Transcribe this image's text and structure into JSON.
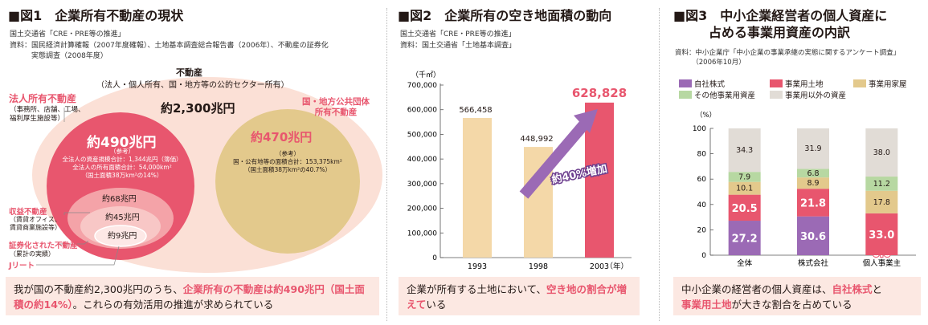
{
  "colors": {
    "pink": "#e8566e",
    "pinkLight": "#f4a3a8",
    "bg1": "#fbe0d6",
    "tan": "#e3c98c",
    "purple": "#9b6ab5",
    "green": "#b7d8a2",
    "gray": "#e1dcd6",
    "bar": "#f4d8a8",
    "captionBg": "#fce8e2"
  },
  "panel1": {
    "title": "■図1　企業所有不動産の現状",
    "source": [
      "国土交通省「CRE・PRE等の推進」",
      "資料：国民経済計算確報（2007年度確報）、土地基本調査総合報告書（2006年）、不動産の証券化",
      "　　　実態調査（2008年度）"
    ],
    "top_label": "不動産",
    "top_sub": "（法人・個人所有、国・地方等の公的セクター所有）",
    "total": "約2,300兆円",
    "corp_label": "法人所有不動産",
    "corp_sub": [
      "（事務所、店舗、工場、",
      "福利厚生施設等）"
    ],
    "corp_value": "約490兆円",
    "corp_note": [
      "（参考）",
      "全法人の資産規模合計：1,344兆円（簿価）",
      "全法人の所有面積合計：54,000km²",
      "（国土面積38万km²の14%）"
    ],
    "public_label": [
      "国・地方公共団体",
      "所有不動産"
    ],
    "public_value": "約470兆円",
    "public_note": [
      "（参考）",
      "国・公有地等の面積合計：153,375km²",
      "（国土面積38万km²の40.7%）"
    ],
    "income_label": "収益不動産",
    "income_sub": [
      "（賃貸オフィス、",
      "賃貸商業施設等）"
    ],
    "income_value": "約68兆円",
    "sec_label": "証券化された不動産",
    "sec_sub": "（累計の実績）",
    "sec_value": "約45兆円",
    "jreit_label": "Jリート",
    "jreit_value": "約9兆円",
    "caption_pre": "我が国の不動産約2,300兆円のうち、",
    "caption_hl": "企業所有の不動産は約490兆円（国土面積の約14%）",
    "caption_post": "。これらの有効活用の推進が求められている"
  },
  "panel2": {
    "title": "■図2　企業所有の空き地面積の動向",
    "source": [
      "国土交通省「CRE・PRE等の推進」",
      "資料：国土交通省「土地基本調査」"
    ],
    "annotation": "約40%増加",
    "caption_pre": "企業が所有する土地において、",
    "caption_hl": "空き地の割合が増えて",
    "caption_post": "いる"
  },
  "panel3": {
    "title": "■図3　中小企業経営者の個人資産に",
    "title_line2": "占める事業用資産の内訳",
    "source": [
      "資料：中小企業庁「中小企業の事業承継の実態に関するアンケート調査」",
      "　　　（2006年10月）"
    ],
    "caption_pre": "中小企業の経営者の個人資産は、",
    "caption_hl1": "自社株式",
    "caption_mid": "と",
    "caption_hl2": "事業用土地",
    "caption_post": "が大きな割合を占めている"
  },
  "chart_data": [
    {
      "type": "bar",
      "unit_label": "（千㎡）",
      "categories": [
        "1993",
        "1998",
        "2003"
      ],
      "x_unit": "（年）",
      "values": [
        566458,
        448992,
        628828
      ],
      "value_labels": [
        "566,458",
        "448,992",
        "628,828"
      ],
      "ylim": [
        0,
        700000
      ],
      "yticks": [
        "0",
        "100,000",
        "200,000",
        "300,000",
        "400,000",
        "500,000",
        "600,000",
        "700,000"
      ],
      "highlight_index": 2
    },
    {
      "type": "bar",
      "stacked": true,
      "unit_label": "（%）",
      "categories": [
        "全体",
        "株式会社",
        "個人事業主"
      ],
      "ylim": [
        0,
        100
      ],
      "yticks": [
        "0",
        "20",
        "40",
        "60",
        "80",
        "100"
      ],
      "series": [
        {
          "name": "自社株式",
          "color": "#9b6ab5",
          "values": [
            27.2,
            30.6,
            0.0
          ]
        },
        {
          "name": "事業用土地",
          "color": "#e8566e",
          "values": [
            20.5,
            21.8,
            33.0
          ]
        },
        {
          "name": "事業用家屋",
          "color": "#e3c98c",
          "values": [
            10.1,
            8.9,
            17.8
          ]
        },
        {
          "name": "その他事業用資産",
          "color": "#b7d8a2",
          "values": [
            7.9,
            6.8,
            11.2
          ]
        },
        {
          "name": "事業用以外の資産",
          "color": "#e1dcd6",
          "values": [
            34.3,
            31.9,
            38.0
          ]
        }
      ]
    }
  ]
}
